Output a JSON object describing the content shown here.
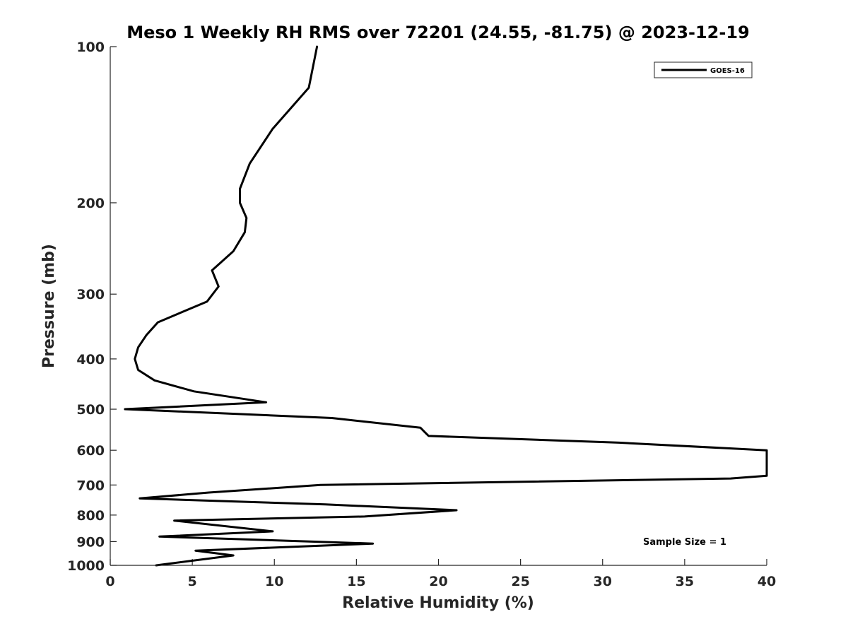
{
  "chart_data": {
    "type": "line",
    "title": "Meso 1 Weekly RH RMS over 72201 (24.55, -81.75) @ 2023-12-19",
    "xlabel": "Relative Humidity (%)",
    "ylabel": "Pressure (mb)",
    "xlim": [
      0,
      40
    ],
    "ylim": [
      100,
      1000
    ],
    "yscale": "log",
    "y_reversed": true,
    "grid": false,
    "legend_position": "top-right",
    "x_ticks": [
      0,
      5,
      10,
      15,
      20,
      25,
      30,
      35,
      40
    ],
    "y_ticks": [
      100,
      200,
      300,
      400,
      500,
      600,
      700,
      800,
      900,
      1000
    ],
    "annotation": "Sample Size = 1",
    "series": [
      {
        "name": "GOES-16",
        "color": "#000000",
        "x": [
          12.6,
          12.1,
          9.9,
          8.5,
          7.9,
          7.9,
          8.3,
          8.2,
          7.5,
          6.2,
          6.6,
          5.9,
          2.9,
          2.2,
          1.7,
          1.5,
          1.7,
          2.7,
          5.1,
          9.5,
          0.9,
          13.5,
          18.9,
          19.2,
          19.4,
          31.0,
          40.0,
          40.0,
          37.8,
          12.8,
          6.0,
          1.8,
          13.1,
          21.1,
          15.5,
          3.9,
          9.9,
          3.0,
          16.0,
          5.2,
          7.5,
          2.8
        ],
        "y": [
          100,
          120,
          144,
          168,
          188,
          200,
          214,
          228,
          248,
          270,
          290,
          310,
          340,
          360,
          380,
          400,
          420,
          440,
          462,
          485,
          500,
          520,
          543,
          555,
          563,
          580,
          600,
          672,
          680,
          700,
          724,
          743,
          763,
          783,
          805,
          820,
          860,
          880,
          908,
          937,
          957,
          1000
        ]
      }
    ]
  }
}
